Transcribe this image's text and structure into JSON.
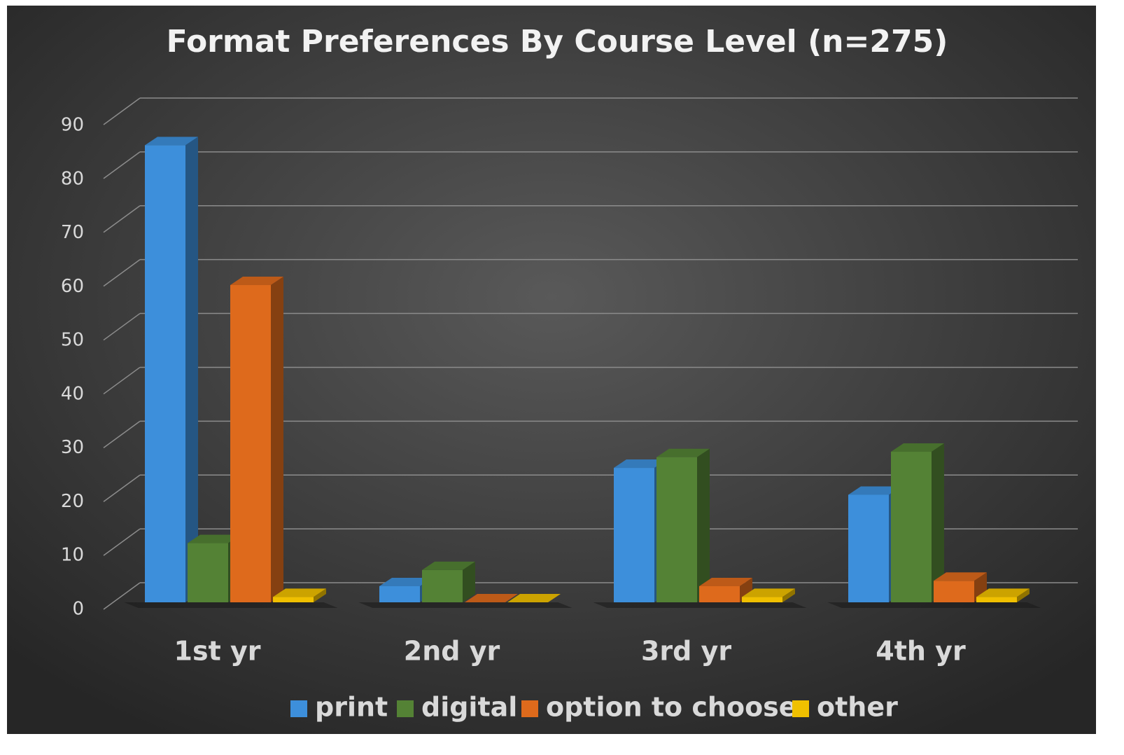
{
  "chart_data": {
    "type": "bar",
    "title": "Format Preferences By Course Level (n=275)",
    "categories": [
      "1st yr",
      "2nd yr",
      "3rd yr",
      "4th yr"
    ],
    "series": [
      {
        "name": "print",
        "color": "#3d8fdb",
        "values": [
          85,
          3,
          25,
          20
        ]
      },
      {
        "name": "digital",
        "color": "#548235",
        "values": [
          11,
          6,
          27,
          28
        ]
      },
      {
        "name": "option to choose",
        "color": "#de6a1c",
        "values": [
          59,
          0,
          3,
          4
        ]
      },
      {
        "name": "other",
        "color": "#f0c000",
        "values": [
          1,
          0,
          1,
          1
        ]
      }
    ],
    "ylim": [
      0,
      90
    ],
    "yticks": [
      0,
      10,
      20,
      30,
      40,
      50,
      60,
      70,
      80,
      90
    ],
    "grid": true,
    "legend": "bottom"
  }
}
